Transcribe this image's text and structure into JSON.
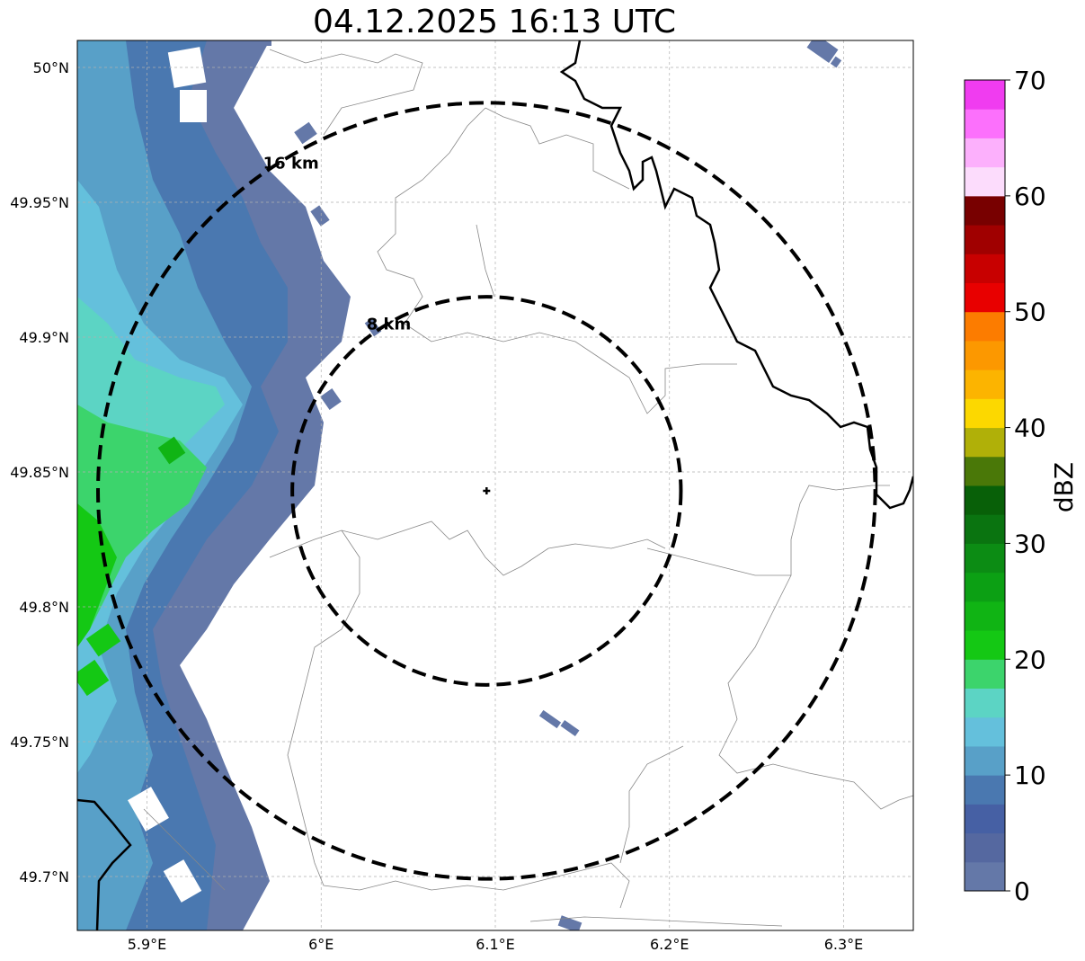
{
  "title": "04.12.2025 16:13 UTC",
  "map": {
    "lon_range": [
      5.86,
      6.34
    ],
    "lat_range": [
      49.68,
      50.01
    ],
    "lon_ticks": [
      {
        "value": 5.9,
        "label": "5.9°E"
      },
      {
        "value": 6.0,
        "label": "6°E"
      },
      {
        "value": 6.1,
        "label": "6.1°E"
      },
      {
        "value": 6.2,
        "label": "6.2°E"
      },
      {
        "value": 6.3,
        "label": "6.3°E"
      }
    ],
    "lat_ticks": [
      {
        "value": 50.0,
        "label": "50°N"
      },
      {
        "value": 49.95,
        "label": "49.95°N"
      },
      {
        "value": 49.9,
        "label": "49.9°N"
      },
      {
        "value": 49.85,
        "label": "49.85°N"
      },
      {
        "value": 49.8,
        "label": "49.8°N"
      },
      {
        "value": 49.75,
        "label": "49.75°N"
      },
      {
        "value": 49.7,
        "label": "49.7°N"
      }
    ],
    "radar_site": {
      "lon": 6.095,
      "lat": 49.843
    },
    "range_rings": [
      {
        "km": 8,
        "label": "8 km"
      },
      {
        "km": 16,
        "label": "16 km"
      }
    ]
  },
  "colorbar": {
    "label": "dBZ",
    "min": 0,
    "max": 70,
    "step": 2.5,
    "ticks": [
      "0",
      "10",
      "20",
      "30",
      "40",
      "50",
      "60",
      "70"
    ],
    "colors": [
      "#6478a8",
      "#5568a0",
      "#4660a4",
      "#4a78b0",
      "#58a0c8",
      "#64c0dc",
      "#5cd4c4",
      "#3cd46c",
      "#14c814",
      "#10b414",
      "#0ca014",
      "#0c8c14",
      "#0a7410",
      "#086008",
      "#4a7808",
      "#b0b008",
      "#fcd800",
      "#fcb400",
      "#fc9800",
      "#fc7c00",
      "#e80000",
      "#c80000",
      "#a00000",
      "#780000",
      "#fcdcfc",
      "#fcb0fc",
      "#fc70fc",
      "#f03cf0"
    ]
  }
}
